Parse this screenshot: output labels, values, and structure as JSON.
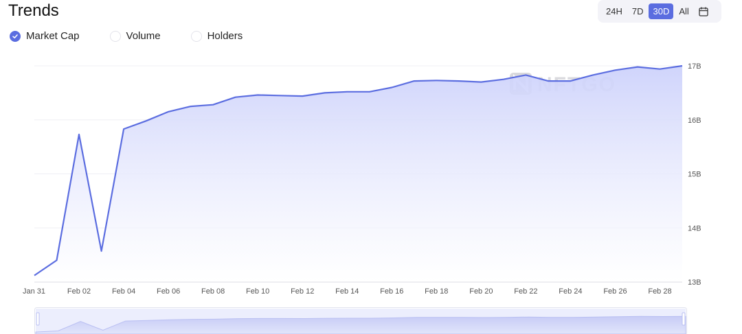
{
  "header": {
    "title": "Trends"
  },
  "ranges": [
    {
      "label": "24H",
      "active": false
    },
    {
      "label": "7D",
      "active": false
    },
    {
      "label": "30D",
      "active": true
    },
    {
      "label": "All",
      "active": false
    }
  ],
  "toggles": [
    {
      "label": "Market Cap",
      "checked": true
    },
    {
      "label": "Volume",
      "checked": false
    },
    {
      "label": "Holders",
      "checked": false
    }
  ],
  "watermark": "NFTGO",
  "colors": {
    "accent": "#5b6de0",
    "fill_top": "#cdd2fb",
    "grid": "#efeff4"
  },
  "chart_data": {
    "type": "area",
    "x_ticks": [
      "Jan 31",
      "Feb 02",
      "Feb 04",
      "Feb 06",
      "Feb 08",
      "Feb 10",
      "Feb 12",
      "Feb 14",
      "Feb 16",
      "Feb 18",
      "Feb 20",
      "Feb 22",
      "Feb 24",
      "Feb 26",
      "Feb 28"
    ],
    "y_ticks": [
      "13B",
      "14B",
      "15B",
      "16B",
      "17B"
    ],
    "ylim": [
      13,
      17
    ],
    "unit": "B",
    "series": [
      {
        "values": [
          {
            "x": "Jan 31",
            "y": 13.12
          },
          {
            "x": "Feb 01",
            "y": 13.4
          },
          {
            "x": "Feb 02",
            "y": 15.73
          },
          {
            "x": "Feb 03",
            "y": 13.57
          },
          {
            "x": "Feb 04",
            "y": 15.83
          },
          {
            "x": "Feb 05",
            "y": 15.98
          },
          {
            "x": "Feb 06",
            "y": 16.15
          },
          {
            "x": "Feb 07",
            "y": 16.25
          },
          {
            "x": "Feb 08",
            "y": 16.28
          },
          {
            "x": "Feb 09",
            "y": 16.42
          },
          {
            "x": "Feb 10",
            "y": 16.46
          },
          {
            "x": "Feb 11",
            "y": 16.45
          },
          {
            "x": "Feb 12",
            "y": 16.44
          },
          {
            "x": "Feb 13",
            "y": 16.5
          },
          {
            "x": "Feb 14",
            "y": 16.52
          },
          {
            "x": "Feb 15",
            "y": 16.52
          },
          {
            "x": "Feb 16",
            "y": 16.6
          },
          {
            "x": "Feb 17",
            "y": 16.72
          },
          {
            "x": "Feb 18",
            "y": 16.73
          },
          {
            "x": "Feb 19",
            "y": 16.72
          },
          {
            "x": "Feb 20",
            "y": 16.7
          },
          {
            "x": "Feb 21",
            "y": 16.75
          },
          {
            "x": "Feb 22",
            "y": 16.83
          },
          {
            "x": "Feb 23",
            "y": 16.72
          },
          {
            "x": "Feb 24",
            "y": 16.72
          },
          {
            "x": "Feb 25",
            "y": 16.83
          },
          {
            "x": "Feb 26",
            "y": 16.92
          },
          {
            "x": "Feb 27",
            "y": 16.98
          },
          {
            "x": "Feb 28",
            "y": 16.94
          },
          {
            "x": "Mar 01",
            "y": 17.0
          }
        ]
      }
    ],
    "grid": true,
    "y_axis_side": "right"
  }
}
